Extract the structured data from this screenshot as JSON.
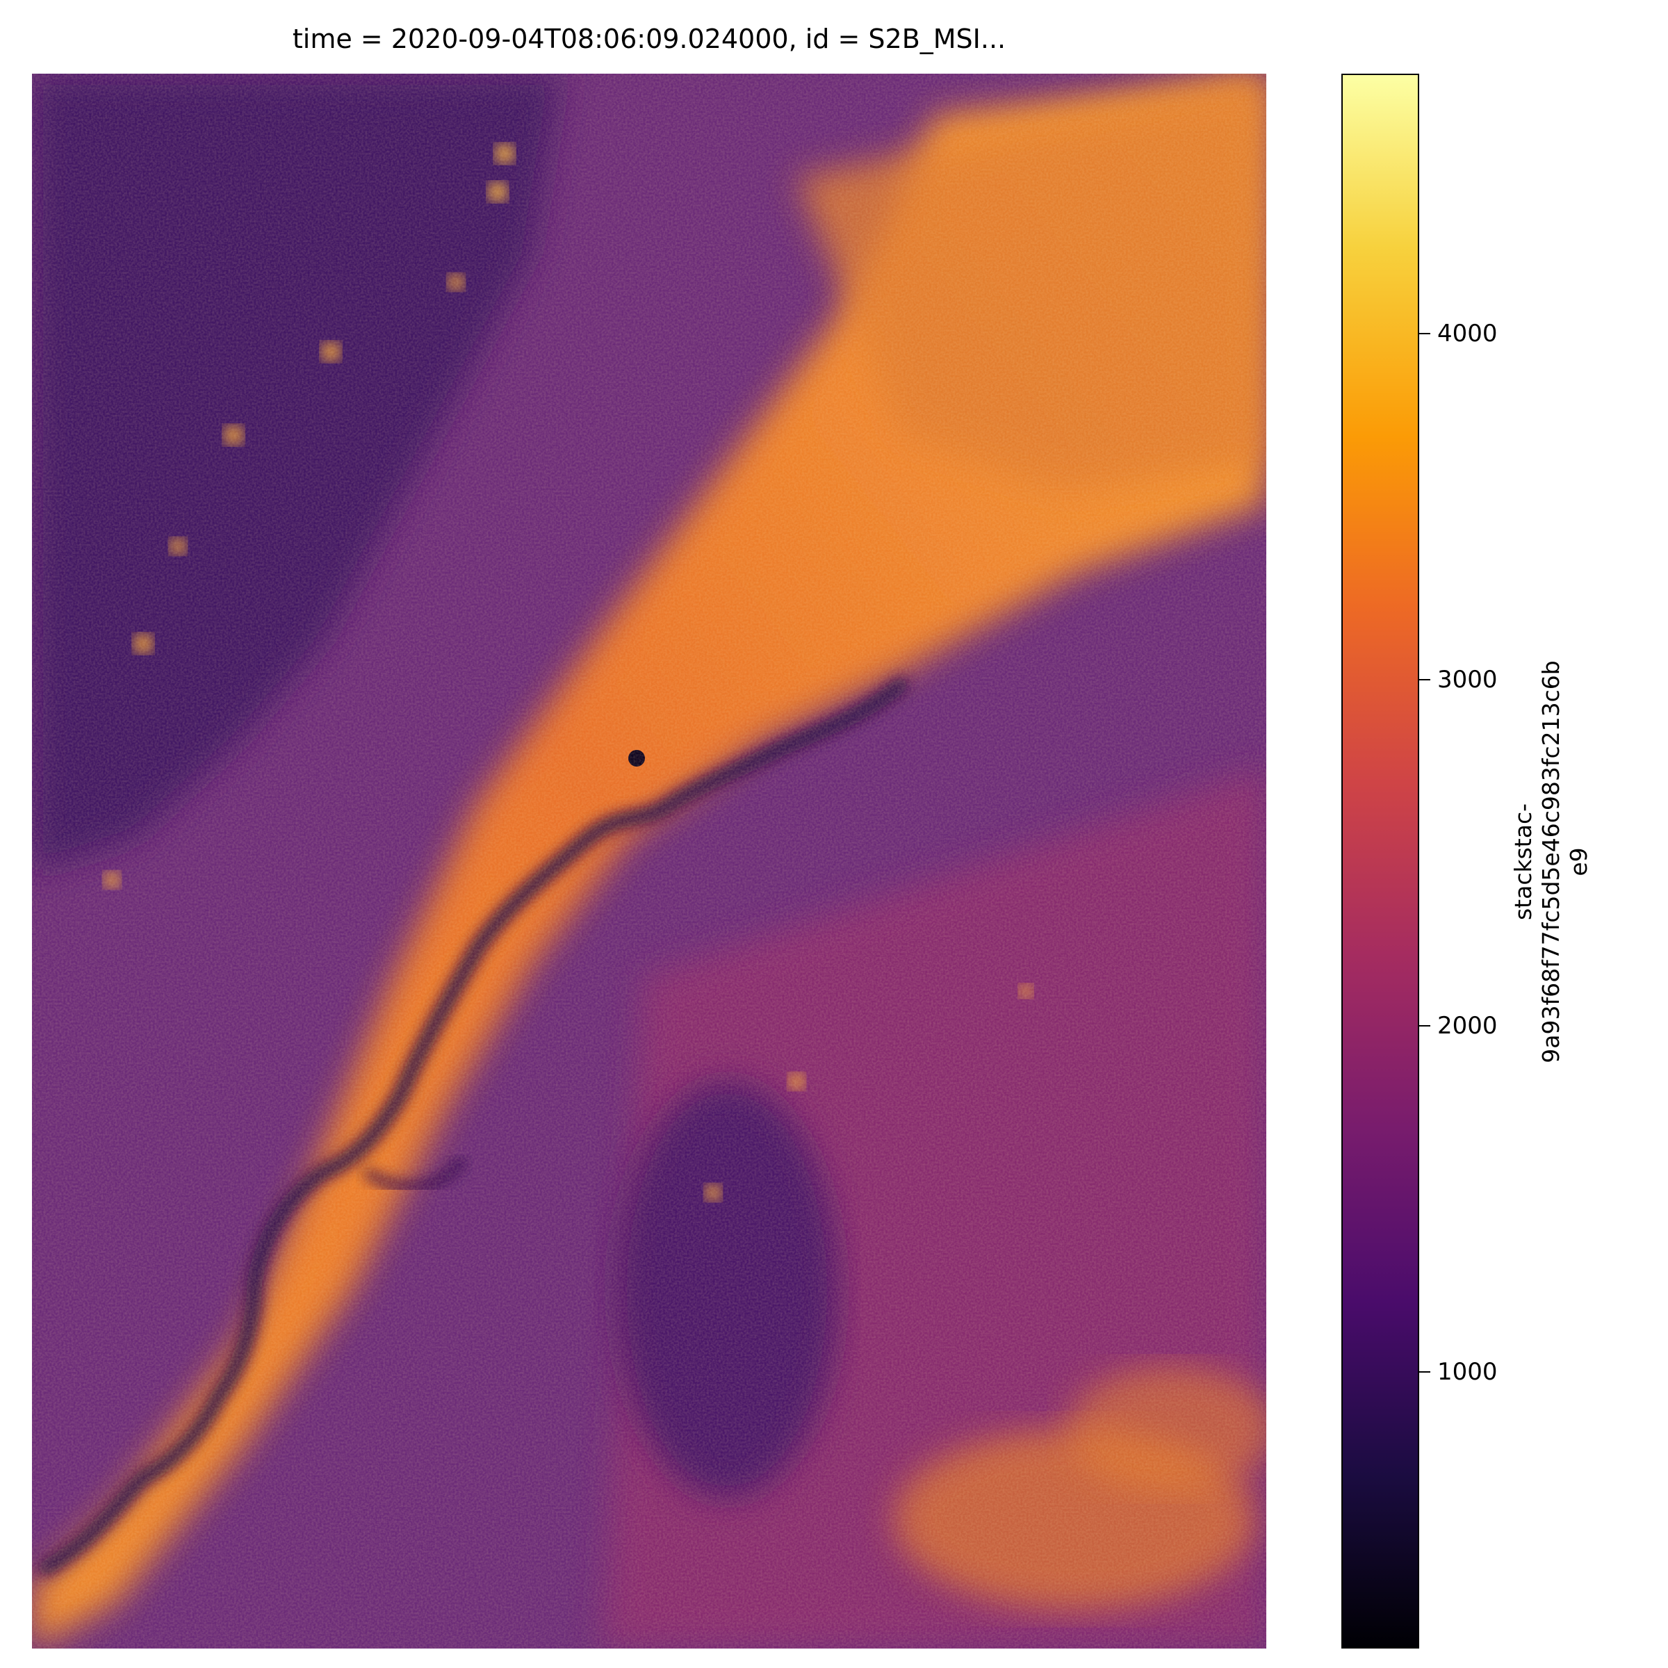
{
  "chart_data": {
    "type": "heatmap",
    "title": "time = 2020-09-04T08:06:09.024000, id = S2B_MSI...",
    "colormap": "inferno",
    "colorbar": {
      "label_line1": "stackstac-",
      "label_line2": "9a93f68f77fc5d5e46c983fc213c6b",
      "label_line3": "e9",
      "range": [
        200,
        4750
      ],
      "ticks": [
        {
          "value": 1000,
          "label": "1000"
        },
        {
          "value": 2000,
          "label": "2000"
        },
        {
          "value": 3000,
          "label": "3000"
        },
        {
          "value": 4000,
          "label": "4000"
        }
      ]
    },
    "axes_visible": false
  }
}
